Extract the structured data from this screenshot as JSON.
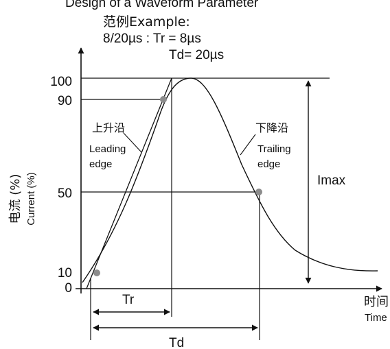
{
  "header": {
    "cut_title": "Design of a Waveform Parameter",
    "example_label": "范例Example:",
    "line_tr": "8/20µs : Tr = 8µs",
    "line_td": "Td= 20µs"
  },
  "y_axis": {
    "label_cn": "电流 (%)",
    "label_en": "Current (%)",
    "ticks": [
      "100",
      "90",
      "50",
      "10",
      "0"
    ]
  },
  "x_axis": {
    "label_cn": "时间",
    "label_en": "Time"
  },
  "annotations": {
    "leading_cn": "上升沿",
    "leading_en_1": "Leading",
    "leading_en_2": "edge",
    "trailing_cn": "下降沿",
    "trailing_en_1": "Trailing",
    "trailing_en_2": "edge",
    "imax": "Imax",
    "tr": "Tr",
    "td": "Td"
  },
  "colors": {
    "line": "#111111",
    "marker": "#8c8c8c"
  }
}
